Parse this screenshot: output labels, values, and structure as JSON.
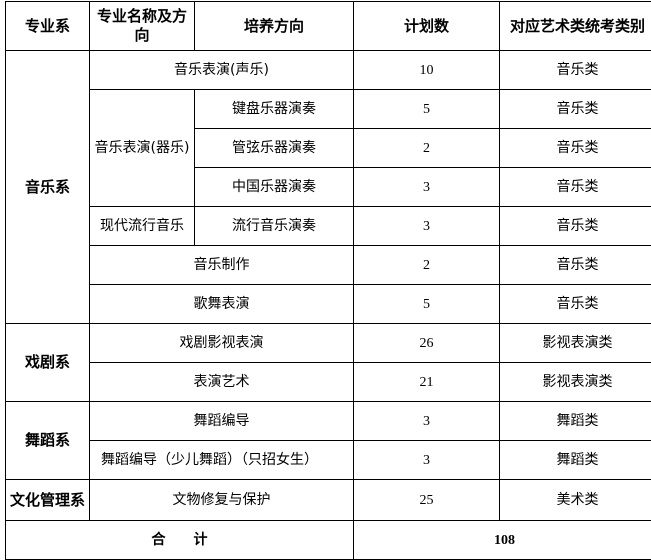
{
  "headers": [
    "专业系",
    "专业名称及方向",
    "培养方向",
    "计划数",
    "对应艺术类统考类别"
  ],
  "departments": {
    "music": "音乐系",
    "drama": "戏剧系",
    "dance": "舞蹈系",
    "culture": "文化管理系"
  },
  "rows": [
    {
      "major": "音乐表演(声乐)",
      "count": "10",
      "category": "音乐类"
    },
    {
      "major": "音乐表演(器乐)",
      "direction": "键盘乐器演奏",
      "count": "5",
      "category": "音乐类"
    },
    {
      "direction": "管弦乐器演奏",
      "count": "2",
      "category": "音乐类"
    },
    {
      "direction": "中国乐器演奏",
      "count": "3",
      "category": "音乐类"
    },
    {
      "major": "现代流行音乐",
      "direction": "流行音乐演奏",
      "count": "3",
      "category": "音乐类"
    },
    {
      "major": "音乐制作",
      "count": "2",
      "category": "音乐类"
    },
    {
      "major": "歌舞表演",
      "count": "5",
      "category": "音乐类"
    },
    {
      "major": "戏剧影视表演",
      "count": "26",
      "category": "影视表演类"
    },
    {
      "major": "表演艺术",
      "count": "21",
      "category": "影视表演类"
    },
    {
      "major": "舞蹈编导",
      "count": "3",
      "category": "舞蹈类"
    },
    {
      "major": "舞蹈编导（少儿舞蹈）（只招女生）",
      "count": "3",
      "category": "舞蹈类"
    },
    {
      "major": "文物修复与保护",
      "count": "25",
      "category": "美术类"
    }
  ],
  "total": {
    "label": "合　　计",
    "value": "108"
  }
}
